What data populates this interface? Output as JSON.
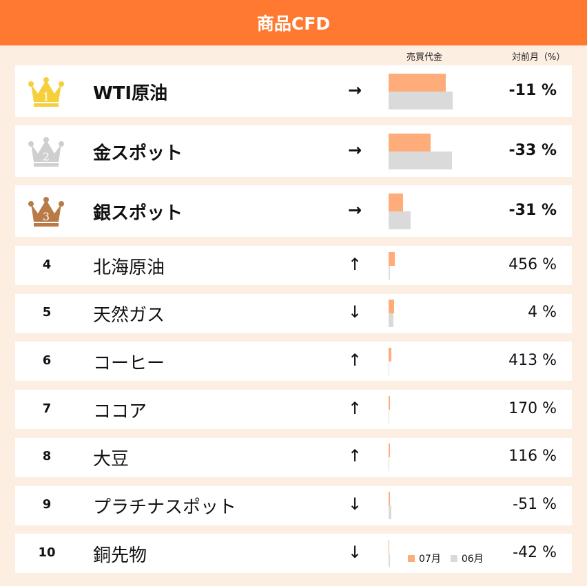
{
  "title": "商品CFD",
  "columns": {
    "volume": "売買代金",
    "change": "対前月（%）"
  },
  "legend": {
    "current": "07月",
    "previous": "06月"
  },
  "colors": {
    "header": "#ff7a30",
    "current": "#ffac7b",
    "previous": "#dadada",
    "gold": "#f5d03c",
    "silver": "#cfcfcf",
    "bronze": "#b87a46"
  },
  "chart_data": {
    "type": "bar",
    "categories": [
      "WTI原油",
      "金スポット",
      "銀スポット",
      "北海原油",
      "天然ガス",
      "コーヒー",
      "ココア",
      "大豆",
      "プラチナスポット",
      "銅先物"
    ],
    "series": [
      {
        "name": "07月",
        "values": [
          86,
          64,
          22,
          9,
          8,
          4,
          2.5,
          2,
          2,
          1.4
        ]
      },
      {
        "name": "06月",
        "values": [
          97,
          96,
          33,
          1.7,
          7.7,
          0.8,
          0.9,
          0.9,
          4,
          2.4
        ]
      }
    ],
    "ylim": [
      0,
      100
    ]
  },
  "rows": [
    {
      "rank": "1",
      "name": "WTI原油",
      "arrow": "→",
      "pct": "-11 %"
    },
    {
      "rank": "2",
      "name": "金スポット",
      "arrow": "→",
      "pct": "-33 %"
    },
    {
      "rank": "3",
      "name": "銀スポット",
      "arrow": "→",
      "pct": "-31 %"
    },
    {
      "rank": "4",
      "name": "北海原油",
      "arrow": "↑",
      "pct": "456 %"
    },
    {
      "rank": "5",
      "name": "天然ガス",
      "arrow": "↓",
      "pct": "4 %"
    },
    {
      "rank": "6",
      "name": "コーヒー",
      "arrow": "↑",
      "pct": "413 %"
    },
    {
      "rank": "7",
      "name": "ココア",
      "arrow": "↑",
      "pct": "170 %"
    },
    {
      "rank": "8",
      "name": "大豆",
      "arrow": "↑",
      "pct": "116 %"
    },
    {
      "rank": "9",
      "name": "プラチナスポット",
      "arrow": "↓",
      "pct": "-51 %"
    },
    {
      "rank": "10",
      "name": "銅先物",
      "arrow": "↓",
      "pct": "-42 %"
    }
  ]
}
